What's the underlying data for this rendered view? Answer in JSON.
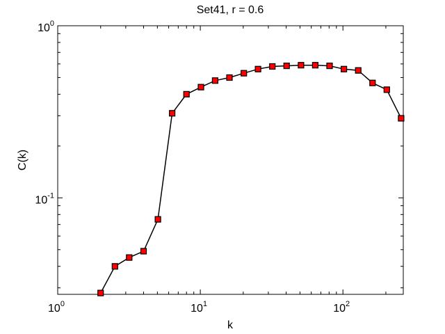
{
  "chart_data": {
    "type": "line",
    "title": "Set41, r = 0.6",
    "xlabel": "k",
    "ylabel": "C(k)",
    "xscale": "log",
    "yscale": "log",
    "xlim": [
      1,
      265
    ],
    "ylim": [
      0.0275,
      1
    ],
    "grid": false,
    "x_ticks": [
      {
        "value": 1,
        "base": "10",
        "exp": "0"
      },
      {
        "value": 10,
        "base": "10",
        "exp": "1"
      },
      {
        "value": 100,
        "base": "10",
        "exp": "2"
      }
    ],
    "y_ticks": [
      {
        "value": 0.1,
        "base": "10",
        "exp": "-1"
      },
      {
        "value": 1,
        "base": "10",
        "exp": "0"
      }
    ],
    "series": [
      {
        "line_color": "#000000",
        "marker": "square",
        "marker_color": "#ff0000",
        "marker_edge_color": "#000000",
        "x": [
          2,
          2.52,
          3.17,
          4,
          5.04,
          6.35,
          8,
          10.1,
          12.7,
          16,
          20.2,
          25.4,
          32,
          40.3,
          50.8,
          64,
          80.6,
          101.6,
          128,
          161.3,
          203.2,
          256
        ],
        "y": [
          0.028,
          0.04,
          0.045,
          0.049,
          0.075,
          0.31,
          0.4,
          0.44,
          0.48,
          0.5,
          0.53,
          0.56,
          0.58,
          0.585,
          0.59,
          0.59,
          0.585,
          0.56,
          0.55,
          0.465,
          0.425,
          0.29
        ]
      }
    ]
  }
}
